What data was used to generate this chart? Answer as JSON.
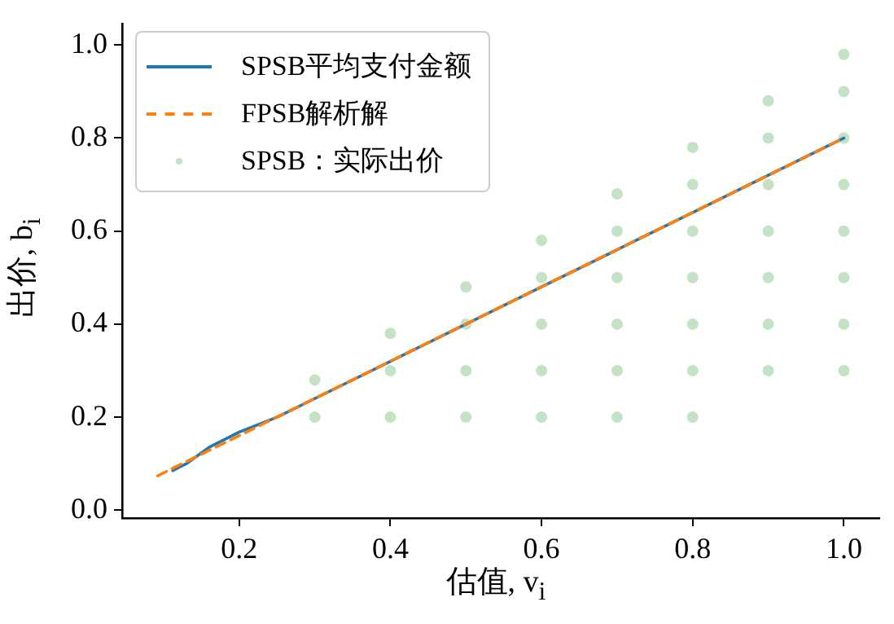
{
  "chart_data": {
    "type": "line",
    "xlabel": "估值, v$_{i}$",
    "ylabel": "出价, b$_{i}$",
    "xlim": [
      0.045,
      1.047
    ],
    "ylim": [
      -0.017,
      1.045
    ],
    "xticks": [
      0.2,
      0.4,
      0.6,
      0.8,
      {
        "value": 1,
        "label": "1.0"
      }
    ],
    "yticks": [
      {
        "value": 0,
        "label": "0.0"
      },
      0.2,
      0.4,
      0.6,
      0.8,
      {
        "value": 1,
        "label": "1.0"
      }
    ],
    "grid": false,
    "legend": "top left",
    "series": [
      {
        "name": "SPSB平均支付金额",
        "marker": "none",
        "color": "#1f77b4",
        "line_style": "solid",
        "x": [
          0.112,
          0.13,
          0.16,
          0.2,
          0.25,
          0.3,
          0.4,
          0.5,
          0.6,
          0.7,
          0.8,
          0.9,
          1.0
        ],
        "values": [
          0.085,
          0.1,
          0.135,
          0.168,
          0.2,
          0.24,
          0.32,
          0.4,
          0.48,
          0.56,
          0.64,
          0.72,
          0.8
        ]
      },
      {
        "name": "FPSB解析解",
        "marker": "none",
        "color": "#ff7f0e",
        "line_style": "dashed",
        "x": [
          0.092,
          1.0
        ],
        "values": [
          0.074,
          0.8
        ]
      },
      {
        "name": "SPSB：实际出价",
        "type": "scatter",
        "marker": "circle",
        "color": "#c4e3c4",
        "x": [
          0.3,
          0.3,
          0.4,
          0.4,
          0.4,
          0.5,
          0.5,
          0.5,
          0.5,
          0.6,
          0.6,
          0.6,
          0.6,
          0.6,
          0.7,
          0.7,
          0.7,
          0.7,
          0.7,
          0.7,
          0.8,
          0.8,
          0.8,
          0.8,
          0.8,
          0.8,
          0.8,
          0.9,
          0.9,
          0.9,
          0.9,
          0.9,
          0.9,
          0.9,
          1.0,
          1.0,
          1.0,
          1.0,
          1.0,
          1.0,
          1.0,
          1.0
        ],
        "values": [
          0.28,
          0.2,
          0.38,
          0.3,
          0.2,
          0.48,
          0.4,
          0.3,
          0.2,
          0.58,
          0.5,
          0.4,
          0.3,
          0.2,
          0.68,
          0.6,
          0.5,
          0.4,
          0.3,
          0.2,
          0.78,
          0.7,
          0.6,
          0.5,
          0.4,
          0.3,
          0.2,
          0.88,
          0.8,
          0.7,
          0.6,
          0.5,
          0.4,
          0.3,
          0.98,
          0.9,
          0.8,
          0.7,
          0.6,
          0.5,
          0.4,
          0.3
        ]
      }
    ]
  }
}
